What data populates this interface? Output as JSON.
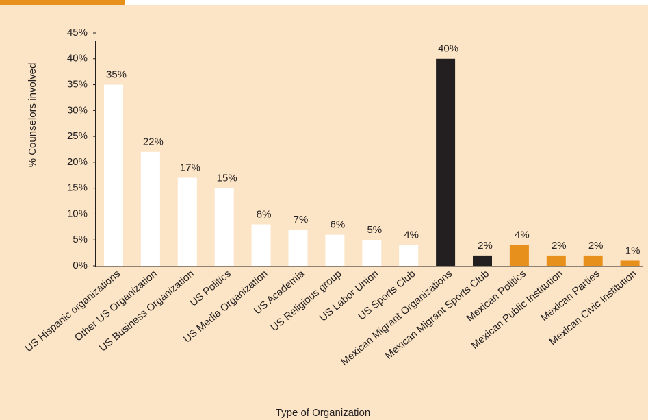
{
  "chart_data": {
    "type": "bar",
    "y_label": "% Counselors involved",
    "x_label": "Type of Organization",
    "categories": [
      "US Hispanic organizations",
      "Other US Organization",
      "US Business Organization",
      "US Politics",
      "US Media Organization",
      "US Academia",
      "US Religious group",
      "US Labor Union",
      "US Sports Club",
      "Mexican Migrant Organizations",
      "Mexican Migrant Sports Club",
      "Mexican Politics",
      "Mexican Public Institution",
      "Mexican Parties",
      "Mexican Civic Institution"
    ],
    "values": [
      35,
      22,
      17,
      15,
      8,
      7,
      6,
      5,
      4,
      40,
      2,
      4,
      2,
      2,
      1
    ],
    "value_labels": [
      "35%",
      "22%",
      "17%",
      "15%",
      "8%",
      "7%",
      "6%",
      "5%",
      "4%",
      "40%",
      "2%",
      "4%",
      "2%",
      "2%",
      "1%"
    ],
    "colors": [
      "#ffffff",
      "#ffffff",
      "#ffffff",
      "#ffffff",
      "#ffffff",
      "#ffffff",
      "#ffffff",
      "#ffffff",
      "#ffffff",
      "#231f20",
      "#231f20",
      "#e8901c",
      "#e8901c",
      "#e8901c",
      "#e8901c"
    ],
    "ylim": [
      0,
      45
    ],
    "yticks": [
      {
        "value": 0,
        "label": "0%"
      },
      {
        "value": 5,
        "label": "5%"
      },
      {
        "value": 10,
        "label": "10%"
      },
      {
        "value": 15,
        "label": "15%"
      },
      {
        "value": 20,
        "label": "20%"
      },
      {
        "value": 25,
        "label": "25%"
      },
      {
        "value": 30,
        "label": "30%"
      },
      {
        "value": 35,
        "label": "35%"
      },
      {
        "value": 40,
        "label": "40%"
      },
      {
        "value": 45,
        "label": "45%"
      }
    ],
    "grid": false
  }
}
